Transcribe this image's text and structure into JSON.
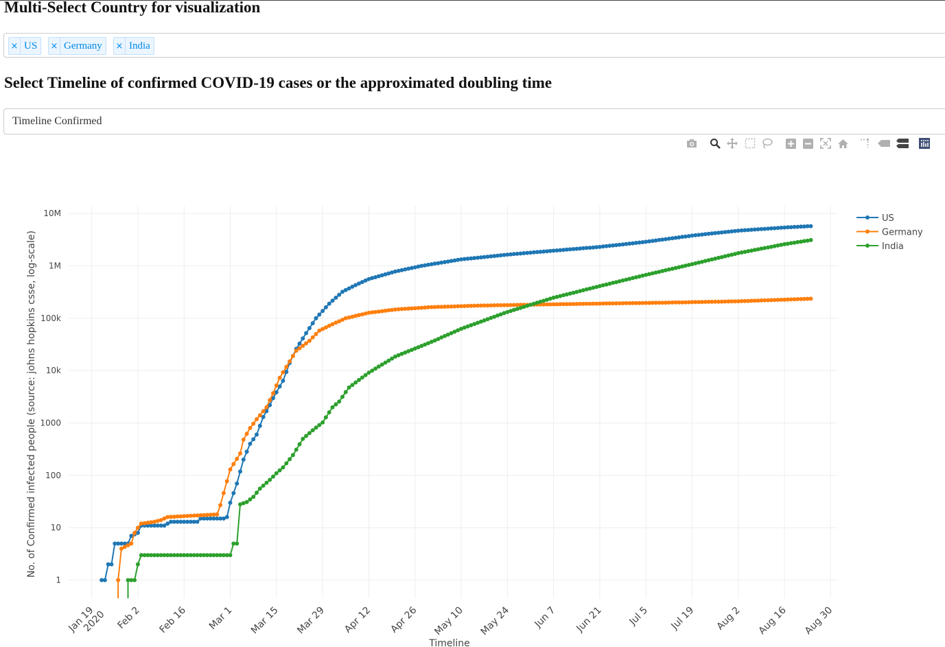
{
  "header": {
    "title": "Multi-Select Country for visualization",
    "subtitle": "Select Timeline of confirmed COVID-19 cases or the approximated doubling time"
  },
  "countries": {
    "selected": [
      {
        "label": "US",
        "remove": "×"
      },
      {
        "label": "Germany",
        "remove": "×"
      },
      {
        "label": "India",
        "remove": "×"
      }
    ]
  },
  "timeline_select": {
    "value": "Timeline Confirmed"
  },
  "modebar": {
    "icons": [
      "camera-icon",
      "zoom-icon",
      "pan-icon",
      "box-select-icon",
      "lasso-icon",
      "zoom-in-icon",
      "zoom-out-icon",
      "autoscale-icon",
      "reset-axes-icon",
      "spike-lines-icon",
      "hover-closest-icon",
      "hover-compare-icon",
      "plotly-logo-icon"
    ]
  },
  "chart_data": {
    "type": "line",
    "xlabel": "Timeline",
    "ylabel": "No. of Confirmed infected people (source: johns hopkins csse, log-scale)",
    "yscale": "log",
    "ylim": [
      0.45,
      14000000
    ],
    "xlim": [
      "2020-01-12",
      "2020-09-01"
    ],
    "y_ticks": [
      {
        "value": 1,
        "label": "1"
      },
      {
        "value": 10,
        "label": "10"
      },
      {
        "value": 100,
        "label": "100"
      },
      {
        "value": 1000,
        "label": "1000"
      },
      {
        "value": 10000,
        "label": "10k"
      },
      {
        "value": 100000,
        "label": "100k"
      },
      {
        "value": 1000000,
        "label": "1M"
      },
      {
        "value": 10000000,
        "label": "10M"
      }
    ],
    "x_ticks": [
      {
        "value": "2020-01-19",
        "label": "Jan 19",
        "sublabel": "2020"
      },
      {
        "value": "2020-02-02",
        "label": "Feb 2"
      },
      {
        "value": "2020-02-16",
        "label": "Feb 16"
      },
      {
        "value": "2020-03-01",
        "label": "Mar 1"
      },
      {
        "value": "2020-03-15",
        "label": "Mar 15"
      },
      {
        "value": "2020-03-29",
        "label": "Mar 29"
      },
      {
        "value": "2020-04-12",
        "label": "Apr 12"
      },
      {
        "value": "2020-04-26",
        "label": "Apr 26"
      },
      {
        "value": "2020-05-10",
        "label": "May 10"
      },
      {
        "value": "2020-05-24",
        "label": "May 24"
      },
      {
        "value": "2020-06-07",
        "label": "Jun 7"
      },
      {
        "value": "2020-06-21",
        "label": "Jun 21"
      },
      {
        "value": "2020-07-05",
        "label": "Jul 5"
      },
      {
        "value": "2020-07-19",
        "label": "Jul 19"
      },
      {
        "value": "2020-08-02",
        "label": "Aug 2"
      },
      {
        "value": "2020-08-16",
        "label": "Aug 16"
      },
      {
        "value": "2020-08-30",
        "label": "Aug 30"
      }
    ],
    "grid": true,
    "legend_position": "top-right",
    "series": [
      {
        "name": "US",
        "color": "#1f77b4",
        "points": [
          [
            "2020-01-22",
            1
          ],
          [
            "2020-01-23",
            1
          ],
          [
            "2020-01-24",
            2
          ],
          [
            "2020-01-25",
            2
          ],
          [
            "2020-01-26",
            5
          ],
          [
            "2020-01-30",
            5
          ],
          [
            "2020-01-31",
            7
          ],
          [
            "2020-02-02",
            8
          ],
          [
            "2020-02-03",
            11
          ],
          [
            "2020-02-10",
            11
          ],
          [
            "2020-02-11",
            12
          ],
          [
            "2020-02-12",
            13
          ],
          [
            "2020-02-20",
            13
          ],
          [
            "2020-02-21",
            15
          ],
          [
            "2020-02-28",
            15
          ],
          [
            "2020-02-29",
            16
          ],
          [
            "2020-03-01",
            30
          ],
          [
            "2020-03-03",
            70
          ],
          [
            "2020-03-05",
            200
          ],
          [
            "2020-03-07",
            400
          ],
          [
            "2020-03-09",
            600
          ],
          [
            "2020-03-11",
            1300
          ],
          [
            "2020-03-13",
            2200
          ],
          [
            "2020-03-14",
            3000
          ],
          [
            "2020-03-17",
            6400
          ],
          [
            "2020-03-19",
            14000
          ],
          [
            "2020-03-21",
            26000
          ],
          [
            "2020-03-24",
            52000
          ],
          [
            "2020-03-27",
            100000
          ],
          [
            "2020-03-31",
            190000
          ],
          [
            "2020-04-04",
            320000
          ],
          [
            "2020-04-08",
            430000
          ],
          [
            "2020-04-12",
            560000
          ],
          [
            "2020-04-20",
            780000
          ],
          [
            "2020-04-28",
            1000000
          ],
          [
            "2020-05-10",
            1330000
          ],
          [
            "2020-05-24",
            1640000
          ],
          [
            "2020-06-07",
            1950000
          ],
          [
            "2020-06-21",
            2300000
          ],
          [
            "2020-07-05",
            2880000
          ],
          [
            "2020-07-19",
            3780000
          ],
          [
            "2020-08-02",
            4700000
          ],
          [
            "2020-08-16",
            5400000
          ],
          [
            "2020-08-24",
            5740000
          ]
        ]
      },
      {
        "name": "Germany",
        "color": "#ff7f0e",
        "points": [
          [
            "2020-01-27",
            0.45
          ],
          [
            "2020-01-27",
            1
          ],
          [
            "2020-01-28",
            4
          ],
          [
            "2020-01-31",
            5
          ],
          [
            "2020-02-01",
            8
          ],
          [
            "2020-02-02",
            10
          ],
          [
            "2020-02-03",
            12
          ],
          [
            "2020-02-07",
            13
          ],
          [
            "2020-02-09",
            14
          ],
          [
            "2020-02-11",
            16
          ],
          [
            "2020-02-26",
            18
          ],
          [
            "2020-02-27",
            27
          ],
          [
            "2020-02-28",
            46
          ],
          [
            "2020-03-01",
            130
          ],
          [
            "2020-03-04",
            262
          ],
          [
            "2020-03-05",
            482
          ],
          [
            "2020-03-07",
            800
          ],
          [
            "2020-03-09",
            1180
          ],
          [
            "2020-03-12",
            2000
          ],
          [
            "2020-03-14",
            3700
          ],
          [
            "2020-03-16",
            7300
          ],
          [
            "2020-03-19",
            15000
          ],
          [
            "2020-03-21",
            24000
          ],
          [
            "2020-03-25",
            37000
          ],
          [
            "2020-03-28",
            58000
          ],
          [
            "2020-04-01",
            77000
          ],
          [
            "2020-04-05",
            100000
          ],
          [
            "2020-04-12",
            127000
          ],
          [
            "2020-04-20",
            147000
          ],
          [
            "2020-05-01",
            163000
          ],
          [
            "2020-05-15",
            174000
          ],
          [
            "2020-06-01",
            182000
          ],
          [
            "2020-06-20",
            190000
          ],
          [
            "2020-07-10",
            198000
          ],
          [
            "2020-08-01",
            210000
          ],
          [
            "2020-08-24",
            236000
          ]
        ]
      },
      {
        "name": "India",
        "color": "#2ca02c",
        "points": [
          [
            "2020-01-30",
            0.45
          ],
          [
            "2020-01-30",
            1
          ],
          [
            "2020-02-01",
            1
          ],
          [
            "2020-02-02",
            2
          ],
          [
            "2020-02-03",
            3
          ],
          [
            "2020-03-01",
            3
          ],
          [
            "2020-03-02",
            5
          ],
          [
            "2020-03-03",
            5
          ],
          [
            "2020-03-04",
            28
          ],
          [
            "2020-03-06",
            31
          ],
          [
            "2020-03-08",
            39
          ],
          [
            "2020-03-10",
            56
          ],
          [
            "2020-03-13",
            82
          ],
          [
            "2020-03-15",
            110
          ],
          [
            "2020-03-17",
            142
          ],
          [
            "2020-03-20",
            244
          ],
          [
            "2020-03-23",
            499
          ],
          [
            "2020-03-26",
            727
          ],
          [
            "2020-03-29",
            1024
          ],
          [
            "2020-04-01",
            1998
          ],
          [
            "2020-04-03",
            2567
          ],
          [
            "2020-04-06",
            4778
          ],
          [
            "2020-04-12",
            9152
          ],
          [
            "2020-04-20",
            18539
          ],
          [
            "2020-05-01",
            35365
          ],
          [
            "2020-05-10",
            62808
          ],
          [
            "2020-05-24",
            131868
          ],
          [
            "2020-06-07",
            246622
          ],
          [
            "2020-06-21",
            410461
          ],
          [
            "2020-07-05",
            673165
          ],
          [
            "2020-07-19",
            1077781
          ],
          [
            "2020-08-02",
            1750723
          ],
          [
            "2020-08-16",
            2589682
          ],
          [
            "2020-08-24",
            3106348
          ]
        ]
      }
    ]
  }
}
